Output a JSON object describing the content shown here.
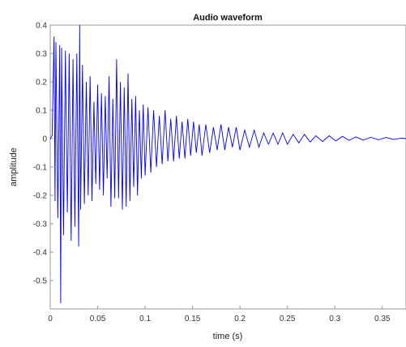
{
  "chart_data": {
    "type": "line",
    "title": "Audio waveform",
    "xlabel": "time (s)",
    "ylabel": "amplitude",
    "xlim": [
      0,
      0.375
    ],
    "ylim": [
      -0.6,
      0.4
    ],
    "x_ticks": [
      0,
      0.05,
      0.1,
      0.15,
      0.2,
      0.25,
      0.3,
      0.35
    ],
    "x_tick_labels": [
      "0",
      "0.05",
      "0.1",
      "0.15",
      "0.2",
      "0.25",
      "0.3",
      "0.35"
    ],
    "y_ticks": [
      0.4,
      0.3,
      0.2,
      0.1,
      0,
      -0.1,
      -0.2,
      -0.3,
      -0.4,
      -0.5
    ],
    "y_tick_labels": [
      "0.4",
      "0.3",
      "0.2",
      "0.1",
      "0",
      "-0.1",
      "-0.2",
      "-0.3",
      "-0.4",
      "-0.5"
    ],
    "grid": false,
    "line_color": "#0000ff",
    "series": [
      {
        "x": [
          0,
          0.002,
          0.004,
          0.005,
          0.006,
          0.008,
          0.01,
          0.011,
          0.012,
          0.014,
          0.016,
          0.018,
          0.02,
          0.022,
          0.024,
          0.026,
          0.028,
          0.03,
          0.031,
          0.032,
          0.034,
          0.036,
          0.038,
          0.04,
          0.042,
          0.044,
          0.046,
          0.048,
          0.05,
          0.052,
          0.054,
          0.056,
          0.058,
          0.06,
          0.062,
          0.064,
          0.066,
          0.068,
          0.07,
          0.072,
          0.074,
          0.076,
          0.078,
          0.08,
          0.082,
          0.084,
          0.086,
          0.088,
          0.09,
          0.092,
          0.094,
          0.096,
          0.098,
          0.1,
          0.103,
          0.106,
          0.109,
          0.112,
          0.115,
          0.118,
          0.121,
          0.124,
          0.127,
          0.13,
          0.133,
          0.136,
          0.139,
          0.142,
          0.145,
          0.148,
          0.151,
          0.154,
          0.157,
          0.16,
          0.164,
          0.168,
          0.172,
          0.176,
          0.18,
          0.184,
          0.188,
          0.192,
          0.196,
          0.2,
          0.205,
          0.21,
          0.215,
          0.22,
          0.225,
          0.23,
          0.235,
          0.24,
          0.245,
          0.25,
          0.256,
          0.262,
          0.268,
          0.274,
          0.28,
          0.287,
          0.294,
          0.301,
          0.308,
          0.315,
          0.322,
          0.33,
          0.338,
          0.346,
          0.354,
          0.362,
          0.37,
          0.375
        ],
        "y": [
          0,
          0.01,
          0.36,
          -0.22,
          0.34,
          -0.28,
          0.33,
          -0.58,
          0.32,
          -0.34,
          0.31,
          -0.26,
          0.3,
          -0.36,
          0.28,
          -0.31,
          0.3,
          -0.38,
          0.4,
          -0.25,
          0.26,
          -0.23,
          0.2,
          -0.2,
          0.22,
          -0.22,
          0.13,
          -0.16,
          0.19,
          -0.18,
          0.16,
          -0.2,
          0.15,
          -0.14,
          0.22,
          -0.24,
          0.14,
          -0.21,
          0.28,
          -0.21,
          0.2,
          -0.25,
          0.18,
          -0.24,
          0.23,
          -0.22,
          0.14,
          -0.17,
          0.15,
          -0.2,
          0.1,
          -0.14,
          0.12,
          -0.13,
          0.11,
          -0.12,
          0.1,
          -0.1,
          0.08,
          -0.09,
          0.1,
          -0.08,
          0.07,
          -0.08,
          0.08,
          -0.07,
          0.06,
          -0.07,
          0.07,
          -0.06,
          0.06,
          -0.05,
          0.05,
          -0.06,
          0.05,
          -0.05,
          0.04,
          -0.04,
          0.05,
          -0.04,
          0.04,
          -0.03,
          0.04,
          -0.04,
          0.03,
          -0.03,
          0.03,
          -0.03,
          0.02,
          -0.02,
          0.02,
          -0.02,
          0.02,
          -0.02,
          0.015,
          -0.015,
          0.015,
          -0.012,
          0.01,
          -0.01,
          0.01,
          -0.008,
          0.008,
          -0.006,
          0.006,
          -0.005,
          0.005,
          -0.004,
          0.004,
          -0.003,
          0.002,
          0
        ]
      }
    ]
  }
}
